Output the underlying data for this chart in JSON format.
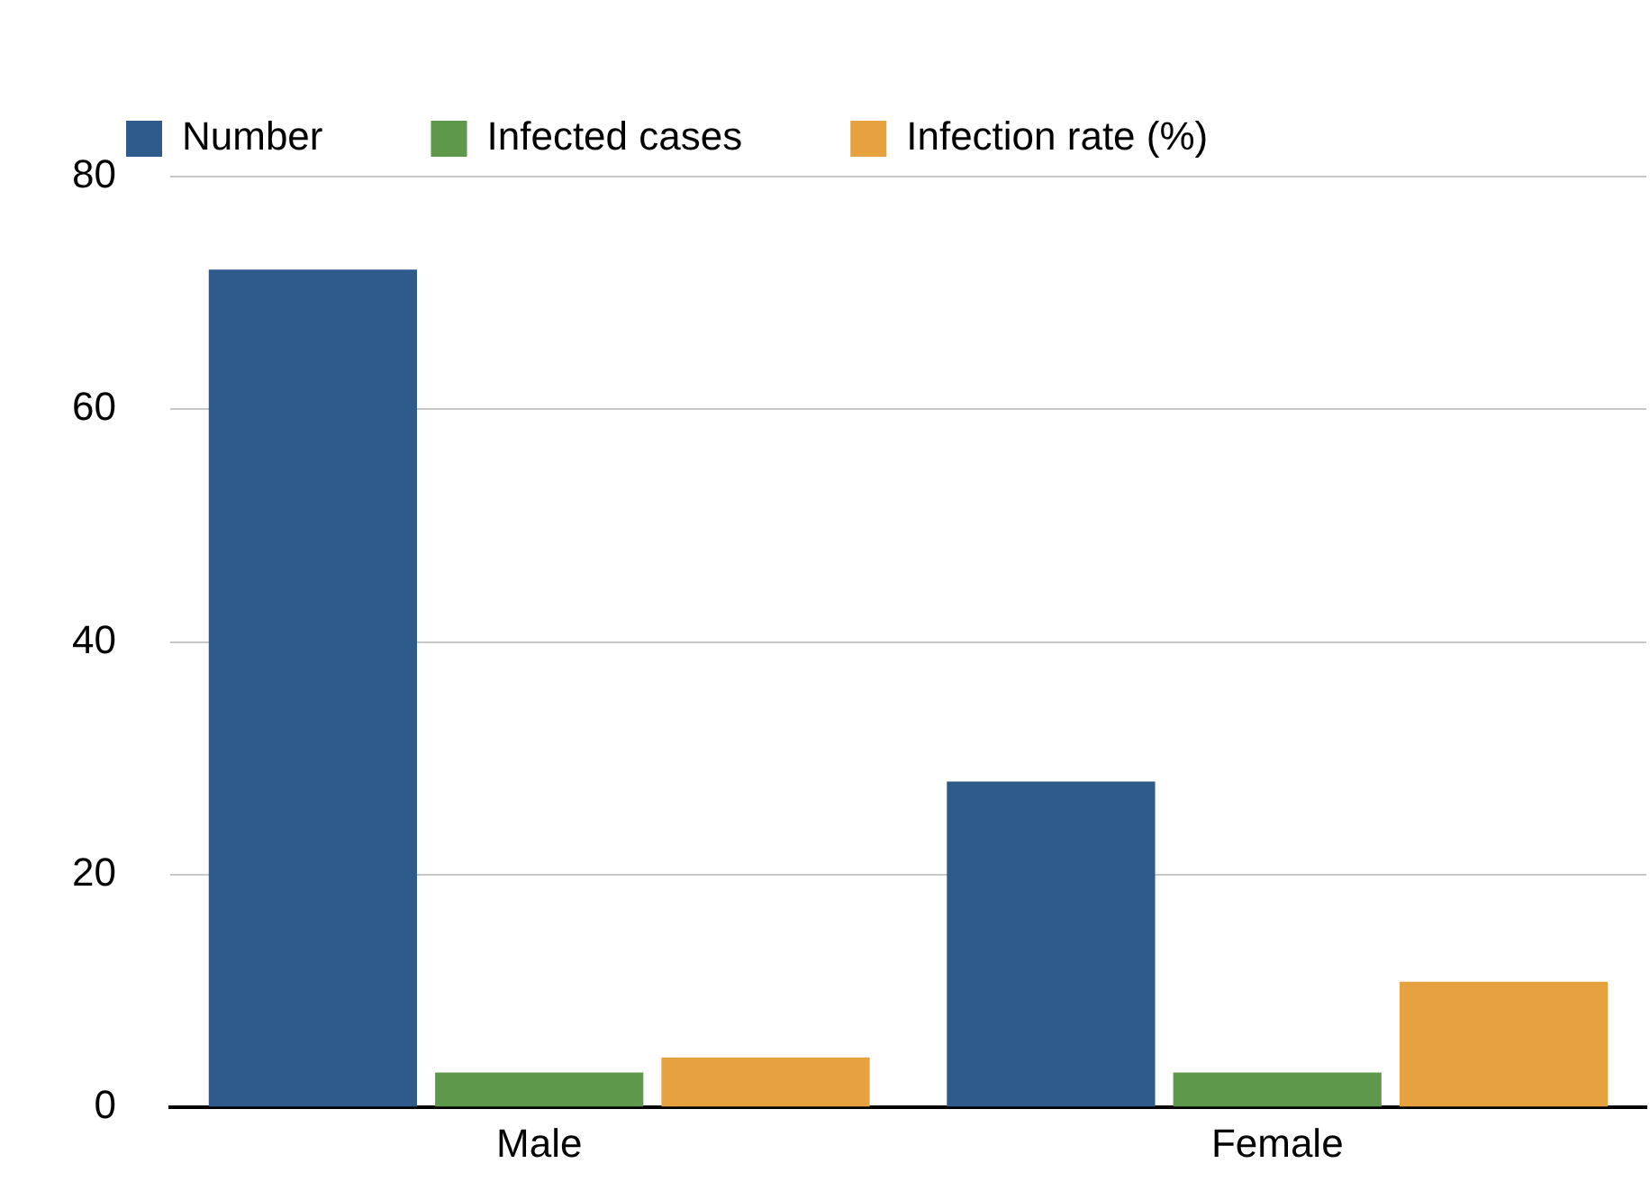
{
  "chart_data": {
    "type": "bar",
    "categories": [
      "Male",
      "Female"
    ],
    "series": [
      {
        "name": "Number",
        "color": "#2e5a8c",
        "values": [
          72,
          28
        ]
      },
      {
        "name": "Infected cases",
        "color": "#5e994b",
        "values": [
          3,
          3
        ]
      },
      {
        "name": "Infection rate (%)",
        "color": "#e6a23e",
        "values": [
          4.3,
          10.8
        ]
      }
    ],
    "ylim": [
      0,
      80
    ],
    "yticks": [
      0,
      20,
      40,
      60,
      80
    ],
    "grid": "y",
    "legend": "top"
  }
}
